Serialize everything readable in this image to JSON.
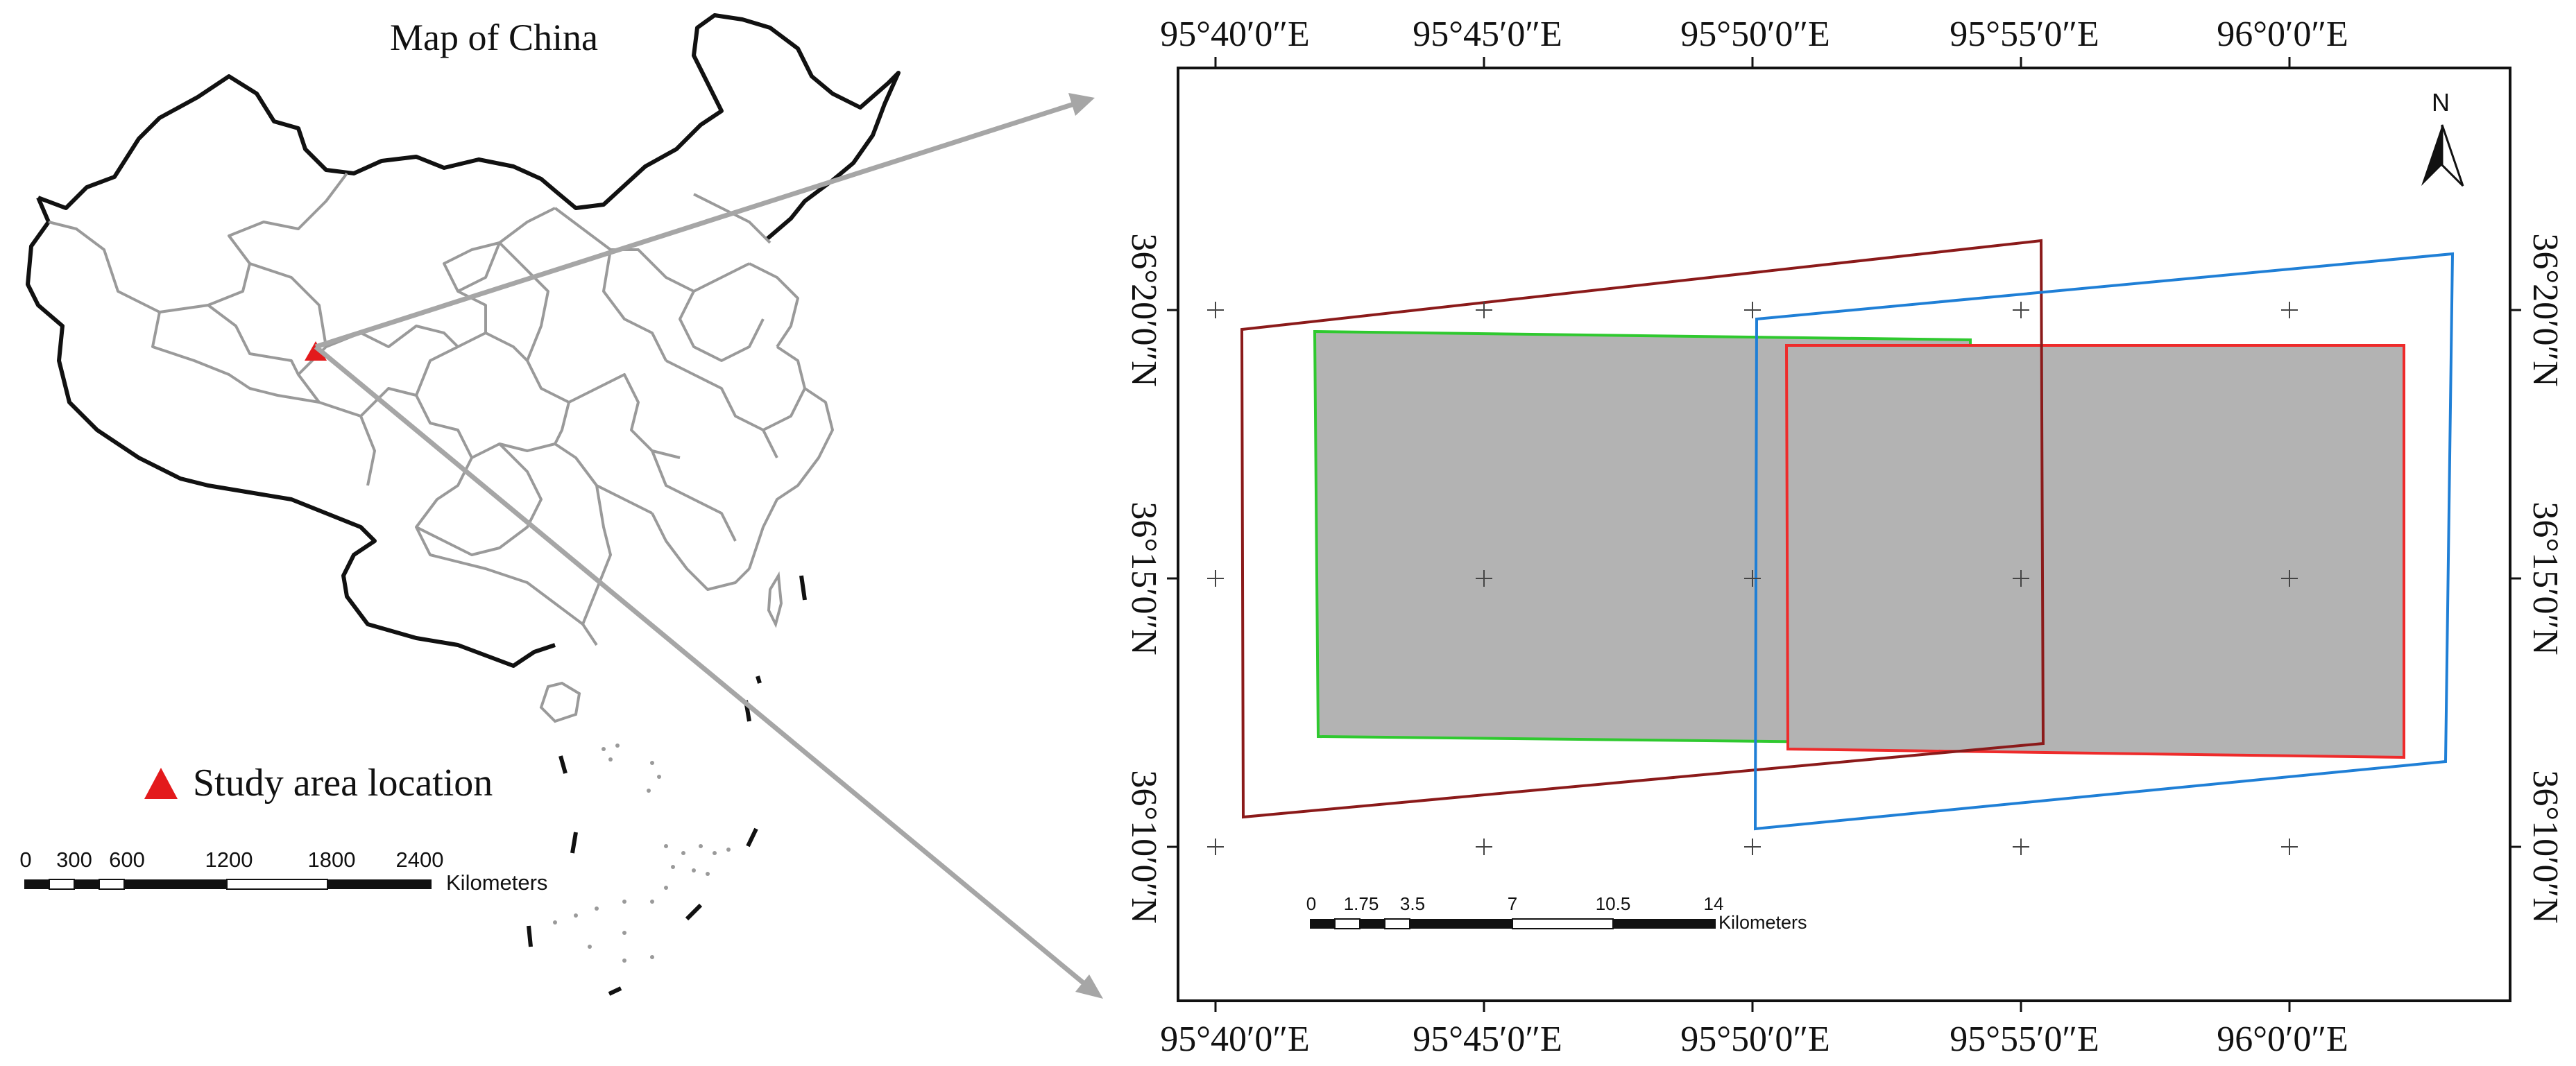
{
  "left_panel": {
    "title": "Map of China",
    "legend": {
      "label": "Study area location",
      "marker_color": "#e31a1c"
    },
    "scale_bar": {
      "ticks": [
        "0",
        "300",
        "600",
        "1200",
        "1800",
        "2400"
      ],
      "unit": "Kilometers"
    }
  },
  "right_panel": {
    "top_longitude_labels": [
      "95°40′0″E",
      "95°45′0″E",
      "95°50′0″E",
      "95°55′0″E",
      "96°0′0″E"
    ],
    "bottom_longitude_labels": [
      "95°40′0″E",
      "95°45′0″E",
      "95°50′0″E",
      "95°55′0″E",
      "96°0′0″E"
    ],
    "left_latitude_labels": [
      "36°20′0″N",
      "36°15′0″N",
      "36°10′0″N"
    ],
    "right_latitude_labels": [
      "36°20′0″N",
      "36°15′0″N",
      "36°10′0″N"
    ],
    "north_arrow": "N",
    "scale_bar": {
      "ticks": [
        "0",
        "1.75",
        "3.5",
        "7",
        "10.5",
        "14"
      ],
      "unit": "Kilometers"
    },
    "footprint_colors": {
      "dark_red": "#8b1a1a",
      "blue": "#1f7fd6",
      "green": "#2fc92f",
      "red": "#ee2b2b",
      "overlap_fill": "#b3b3b3"
    }
  },
  "arrow_color": "#a6a6a6",
  "boundary_color": "#9a9a9a"
}
